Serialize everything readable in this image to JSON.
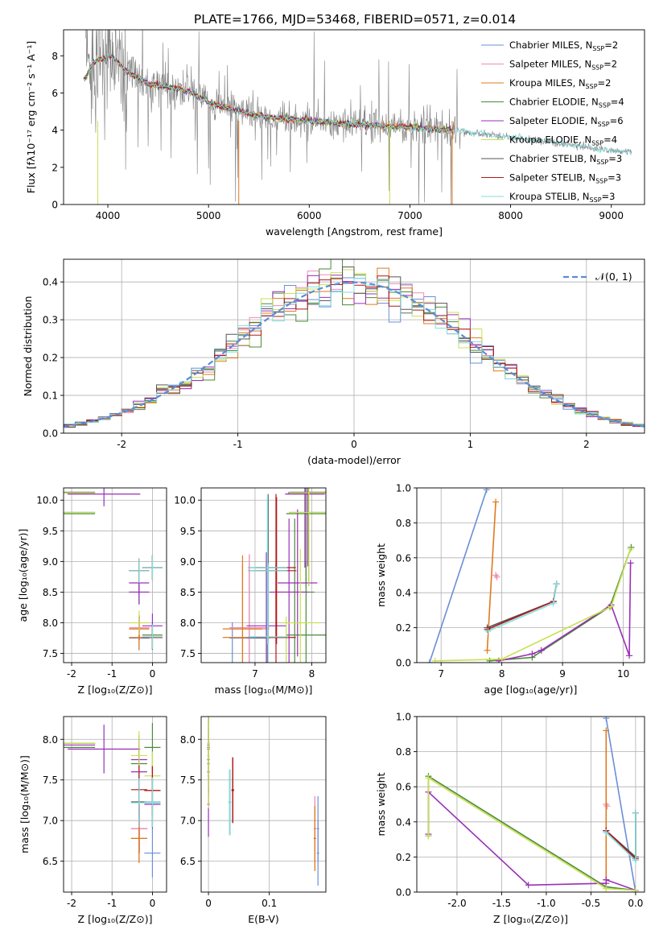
{
  "figure_title": "PLATE=1766, MJD=53468, FIBERID=0571, z=0.014",
  "colors": {
    "Chabrier MILES": "#6a8fd8",
    "Salpeter MILES": "#f08cb8",
    "Kroupa MILES": "#e07a1e",
    "Chabrier ELODIE": "#4a8a3a",
    "Salpeter ELODIE": "#9a2fb8",
    "Kroupa ELODIE": "#c8e050",
    "Chabrier STELIB": "#555555",
    "Salpeter STELIB": "#b01818",
    "Kroupa STELIB": "#80dede",
    "data": "#808080",
    "gauss": "#5b8bd6",
    "grid": "#b0b0b0"
  },
  "chart_data": [
    {
      "id": "spectrum",
      "type": "line",
      "title": "PLATE=1766, MJD=53468, FIBERID=0571, z=0.014",
      "xlabel": "wavelength [Angstrom, rest frame]",
      "ylabel": "Flux [fλ10⁻¹⁷ erg cm⁻² s⁻¹ A⁻¹]",
      "xlim": [
        3560,
        9330
      ],
      "ylim": [
        0,
        9.4
      ],
      "xticks": [
        4000,
        5000,
        6000,
        7000,
        8000,
        9000
      ],
      "yticks": [
        0,
        2,
        4,
        6,
        8
      ],
      "grid": false,
      "legend": "top-right",
      "legend_entries": [
        {
          "label": "Chabrier MILES, N",
          "sub": "SSP",
          "suffix": "=2",
          "model": "Chabrier MILES"
        },
        {
          "label": "Salpeter MILES, N",
          "sub": "SSP",
          "suffix": "=2",
          "model": "Salpeter MILES"
        },
        {
          "label": "Kroupa MILES, N",
          "sub": "SSP",
          "suffix": "=2",
          "model": "Kroupa MILES"
        },
        {
          "label": "Chabrier ELODIE, N",
          "sub": "SSP",
          "suffix": "=4",
          "model": "Chabrier ELODIE"
        },
        {
          "label": "Salpeter ELODIE, N",
          "sub": "SSP",
          "suffix": "=6",
          "model": "Salpeter ELODIE"
        },
        {
          "label": "Kroupa ELODIE, N",
          "sub": "SSP",
          "suffix": "=4",
          "model": "Kroupa ELODIE"
        },
        {
          "label": "Chabrier STELIB, N",
          "sub": "SSP",
          "suffix": "=3",
          "model": "Chabrier STELIB"
        },
        {
          "label": "Salpeter STELIB, N",
          "sub": "SSP",
          "suffix": "=3",
          "model": "Salpeter STELIB"
        },
        {
          "label": "Kroupa STELIB, N",
          "sub": "SSP",
          "suffix": "=3",
          "model": "Kroupa STELIB"
        }
      ],
      "continuum_x": [
        3780,
        3850,
        3950,
        4050,
        4200,
        4400,
        4600,
        4800,
        5000,
        5300,
        5600,
        6000,
        6500,
        7000,
        7400,
        8000,
        8500,
        9000,
        9200
      ],
      "continuum_y": [
        7.2,
        8.0,
        8.3,
        7.9,
        7.1,
        6.5,
        6.3,
        6.1,
        5.5,
        5.0,
        4.7,
        4.5,
        4.3,
        4.15,
        4.0,
        3.6,
        3.3,
        2.9,
        2.8
      ]
    },
    {
      "id": "residuals",
      "type": "line",
      "xlabel": "(data-model)/error",
      "ylabel": "Normed distribution",
      "xlim": [
        -2.5,
        2.5
      ],
      "ylim": [
        0,
        0.46
      ],
      "xticks": [
        -2,
        -1,
        0,
        1,
        2
      ],
      "yticks": [
        0.0,
        0.1,
        0.2,
        0.3,
        0.4
      ],
      "grid": true,
      "legend": "top-right",
      "gauss_label": "𝒩(0, 1)"
    },
    {
      "id": "age_vs_Z",
      "type": "scatter",
      "xlabel": "Z [log₁₀(Z/Z⊙)]",
      "ylabel": "age  [log₁₀(age/yr)]",
      "xlim": [
        -2.2,
        0.35
      ],
      "ylim": [
        7.35,
        10.2
      ],
      "xticks": [
        -2,
        -1,
        0
      ],
      "yticks": [
        7.5,
        8.0,
        8.5,
        9.0,
        9.5,
        10.0
      ],
      "grid": true
    },
    {
      "id": "age_vs_mass",
      "type": "scatter",
      "xlabel": "mass [log₁₀(M/M⊙)]",
      "xlim": [
        6.05,
        8.25
      ],
      "ylim": [
        7.35,
        10.2
      ],
      "xticks": [
        7,
        8
      ],
      "yticks": [
        7.5,
        8.0,
        8.5,
        9.0,
        9.5,
        10.0
      ],
      "grid": true
    },
    {
      "id": "weight_vs_age",
      "type": "line",
      "xlabel": "age  [log₁₀(age/yr)]",
      "ylabel": "mass weight",
      "xlim": [
        6.6,
        10.35
      ],
      "ylim": [
        0,
        1.0
      ],
      "xticks": [
        7,
        8,
        9,
        10
      ],
      "yticks": [
        0.0,
        0.2,
        0.4,
        0.6,
        0.8,
        1.0
      ],
      "grid": true
    },
    {
      "id": "mass_vs_Z",
      "type": "scatter",
      "xlabel": "Z [log₁₀(Z/Z⊙)]",
      "ylabel": "mass [log₁₀(M/M⊙)]",
      "xlim": [
        -2.2,
        0.35
      ],
      "ylim": [
        6.12,
        8.28
      ],
      "xticks": [
        -2,
        -1,
        0
      ],
      "yticks": [
        6.5,
        7.0,
        7.5,
        8.0
      ],
      "grid": true
    },
    {
      "id": "mass_vs_ebv",
      "type": "scatter",
      "xlabel": "E(B-V)",
      "xlim": [
        -0.012,
        0.193
      ],
      "ylim": [
        6.12,
        8.28
      ],
      "xticks": [
        0.0,
        0.1
      ],
      "yticks": [
        6.5,
        7.0,
        7.5,
        8.0
      ],
      "grid": true
    },
    {
      "id": "weight_vs_Z",
      "type": "line",
      "xlabel": "Z [log₁₀(Z/Z⊙)]",
      "ylabel": "mass weight",
      "xlim": [
        -2.45,
        0.1
      ],
      "ylim": [
        0,
        1.0
      ],
      "xticks": [
        -2.0,
        -1.5,
        -1.0,
        -0.5,
        0.0
      ],
      "yticks": [
        0.0,
        0.2,
        0.4,
        0.6,
        0.8,
        1.0
      ],
      "grid": true
    }
  ],
  "ssp_solutions": {
    "Chabrier MILES": {
      "age": [
        6.81,
        7.75
      ],
      "Z": [
        0.0,
        -0.33
      ],
      "mass": [
        6.6,
        6.9
      ],
      "weight": [
        0.0,
        0.99
      ],
      "ebv": 0.18
    },
    "Salpeter MILES": {
      "age": [
        7.9,
        7.92
      ],
      "Z": [
        -0.33,
        -0.32
      ],
      "mass": [
        6.9,
        6.9
      ],
      "weight": [
        0.5,
        0.49
      ],
      "ebv": 0.175
    },
    "Kroupa MILES": {
      "age": [
        7.76,
        7.9
      ],
      "Z": [
        -0.33,
        -0.33
      ],
      "mass": [
        6.78,
        6.78
      ],
      "weight": [
        0.07,
        0.92
      ],
      "ebv": 0.175
    },
    "Chabrier ELODIE": {
      "age": [
        7.8,
        8.5,
        9.78,
        10.13
      ],
      "Z": [
        0.0,
        -0.33,
        -2.32,
        -2.32
      ],
      "mass": [
        7.9,
        7.7,
        7.9,
        7.95
      ],
      "weight": [
        0.01,
        0.03,
        0.32,
        0.66
      ],
      "ebv": 0.0
    },
    "Salpeter ELODIE": {
      "age": [
        7.95,
        8.5,
        8.65,
        9.8,
        10.12,
        10.1
      ],
      "Z": [
        0.0,
        -0.33,
        -0.33,
        -2.32,
        -2.32,
        -1.2
      ],
      "mass": [
        7.2,
        7.6,
        7.75,
        7.95,
        7.93,
        7.88
      ],
      "weight": [
        0.01,
        0.05,
        0.07,
        0.33,
        0.57,
        0.04
      ],
      "ebv": 0.0
    },
    "Kroupa ELODIE": {
      "age": [
        6.9,
        8.0,
        9.8,
        10.12
      ],
      "Z": [
        0.0,
        -0.33,
        -2.32,
        -2.32
      ],
      "mass": [
        7.55,
        7.8,
        7.95,
        7.95
      ],
      "weight": [
        0.01,
        0.02,
        0.32,
        0.65
      ],
      "ebv": 0.0
    },
    "Chabrier STELIB": {
      "age": [
        7.76,
        8.85,
        8.9
      ],
      "Z": [
        0.0,
        -0.33,
        0.0
      ],
      "mass": [
        7.22,
        7.23,
        7.23
      ],
      "weight": [
        0.2,
        0.35,
        0.45
      ],
      "ebv": 0.035
    },
    "Salpeter STELIB": {
      "age": [
        7.76,
        8.85,
        8.9
      ],
      "Z": [
        0.0,
        -0.33,
        0.0
      ],
      "mass": [
        7.37,
        7.38,
        7.37
      ],
      "weight": [
        0.19,
        0.35,
        0.45
      ],
      "ebv": 0.04
    },
    "Kroupa STELIB": {
      "age": [
        7.77,
        8.85,
        8.9
      ],
      "Z": [
        0.0,
        -0.33,
        0.0
      ],
      "mass": [
        7.23,
        7.22,
        7.22
      ],
      "weight": [
        0.18,
        0.34,
        0.45
      ],
      "ebv": 0.035
    }
  }
}
